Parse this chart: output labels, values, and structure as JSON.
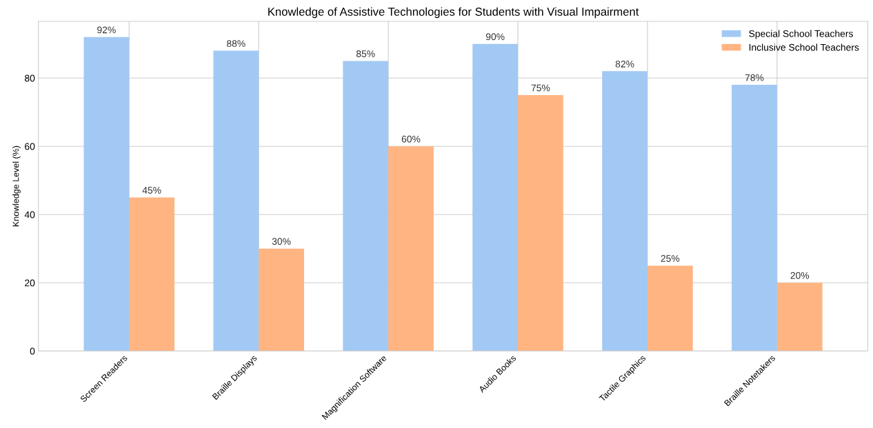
{
  "chart_data": {
    "type": "bar",
    "title": "Knowledge of Assistive Technologies for Students with Visual Impairment",
    "ylabel": "Knowledge Level (%)",
    "categories": [
      "Screen Readers",
      "Braille Displays",
      "Magnification Software",
      "Audio Books",
      "Tactile Graphics",
      "Braille Notetakers"
    ],
    "series": [
      {
        "name": "Special School Teachers",
        "color": "#a1c9f4",
        "values": [
          92,
          88,
          85,
          90,
          82,
          78
        ],
        "value_labels": [
          "92%",
          "88%",
          "85%",
          "90%",
          "82%",
          "78%"
        ]
      },
      {
        "name": "Inclusive School Teachers",
        "color": "#ffb482",
        "values": [
          45,
          30,
          60,
          75,
          25,
          20
        ],
        "value_labels": [
          "45%",
          "30%",
          "60%",
          "75%",
          "25%",
          "20%"
        ]
      }
    ],
    "ylim": [
      0,
      96.6
    ],
    "yticks": [
      0,
      20,
      40,
      60,
      80
    ],
    "grid": true,
    "legend": "top right"
  }
}
